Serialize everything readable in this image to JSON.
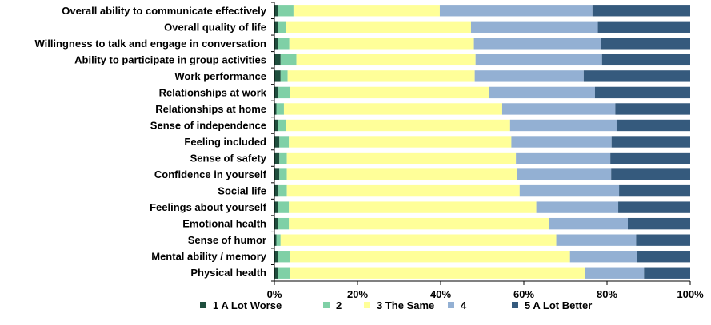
{
  "chart_data": {
    "type": "bar",
    "orientation": "horizontal",
    "stacked": "percent",
    "title": "",
    "xlabel": "",
    "ylabel": "",
    "xlim": [
      0,
      100
    ],
    "x_ticks": [
      "0%",
      "20%",
      "40%",
      "60%",
      "80%",
      "100%"
    ],
    "grid": false,
    "legend_position": "bottom",
    "categories": [
      "Overall ability to communicate effectively",
      "Overall quality of life",
      "Willingness to talk and engage in conversation",
      "Ability to participate in group activities",
      "Work performance",
      "Relationships at work",
      "Relationships at home",
      "Sense of independence",
      "Feeling included",
      "Sense of safety",
      "Confidence in yourself",
      "Social life",
      "Feelings about yourself",
      "Emotional health",
      "Sense of humor",
      "Mental ability / memory",
      "Physical health"
    ],
    "series": [
      {
        "name": "1 A Lot Worse",
        "color": "#1f4e3d",
        "values": [
          0.8,
          0.8,
          0.8,
          1.5,
          1.5,
          1.0,
          0.5,
          0.8,
          1.2,
          1.2,
          1.2,
          1.0,
          0.8,
          0.8,
          0.5,
          0.8,
          0.8
        ]
      },
      {
        "name": "2",
        "color": "#7fd0a6",
        "values": [
          3.8,
          2.0,
          2.8,
          3.8,
          1.7,
          2.8,
          1.8,
          1.9,
          2.3,
          1.8,
          1.8,
          2.0,
          2.7,
          2.7,
          1.0,
          3.0,
          2.9
        ]
      },
      {
        "name": "3 The Same",
        "color": "#ffff99",
        "values": [
          35.2,
          44.5,
          44.4,
          43.1,
          45.0,
          47.8,
          52.5,
          54.0,
          53.5,
          55.1,
          55.4,
          56.0,
          59.5,
          62.5,
          66.3,
          67.3,
          71.1
        ]
      },
      {
        "name": "4",
        "color": "#93b0d3",
        "values": [
          36.7,
          30.5,
          30.5,
          30.4,
          26.2,
          25.5,
          27.2,
          25.6,
          24.1,
          22.7,
          22.6,
          23.9,
          19.7,
          19.0,
          19.2,
          16.2,
          14.1
        ]
      },
      {
        "name": "5 A Lot Better",
        "color": "#355a7d",
        "values": [
          23.5,
          22.2,
          21.5,
          21.2,
          25.6,
          22.9,
          18.0,
          17.7,
          18.9,
          19.2,
          19.0,
          17.1,
          17.3,
          15.0,
          13.0,
          12.7,
          11.1
        ]
      }
    ]
  }
}
